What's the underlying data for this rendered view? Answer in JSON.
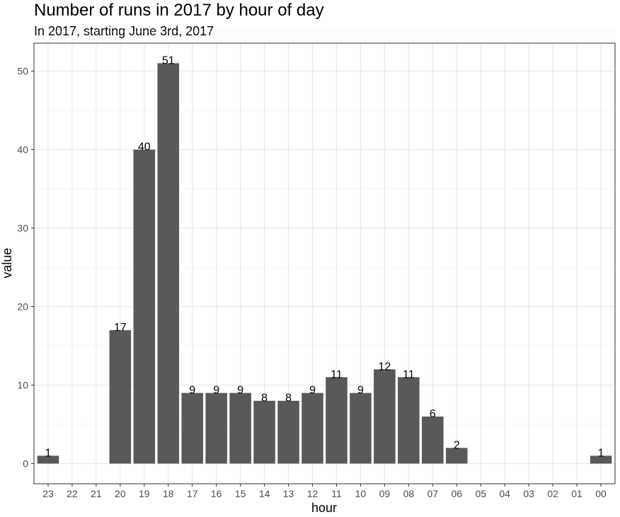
{
  "chart_data": {
    "type": "bar",
    "title": "Number of runs in 2017 by hour of day",
    "subtitle": "In 2017, starting June 3rd, 2017",
    "xlabel": "hour",
    "ylabel": "value",
    "categories": [
      "23",
      "22",
      "21",
      "20",
      "19",
      "18",
      "17",
      "16",
      "15",
      "14",
      "13",
      "12",
      "11",
      "10",
      "09",
      "08",
      "07",
      "06",
      "05",
      "04",
      "03",
      "02",
      "01",
      "00"
    ],
    "values": [
      1,
      null,
      null,
      17,
      40,
      51,
      9,
      9,
      9,
      8,
      8,
      9,
      11,
      9,
      12,
      11,
      6,
      2,
      null,
      null,
      null,
      null,
      null,
      1
    ],
    "ylim": [
      0,
      55
    ],
    "yticks": [
      0,
      10,
      20,
      30,
      40,
      50
    ],
    "grid": true,
    "legend": "none",
    "bar_color": "#595959",
    "grid_color": "#ebebeb",
    "panel_border_color": "#333333"
  }
}
